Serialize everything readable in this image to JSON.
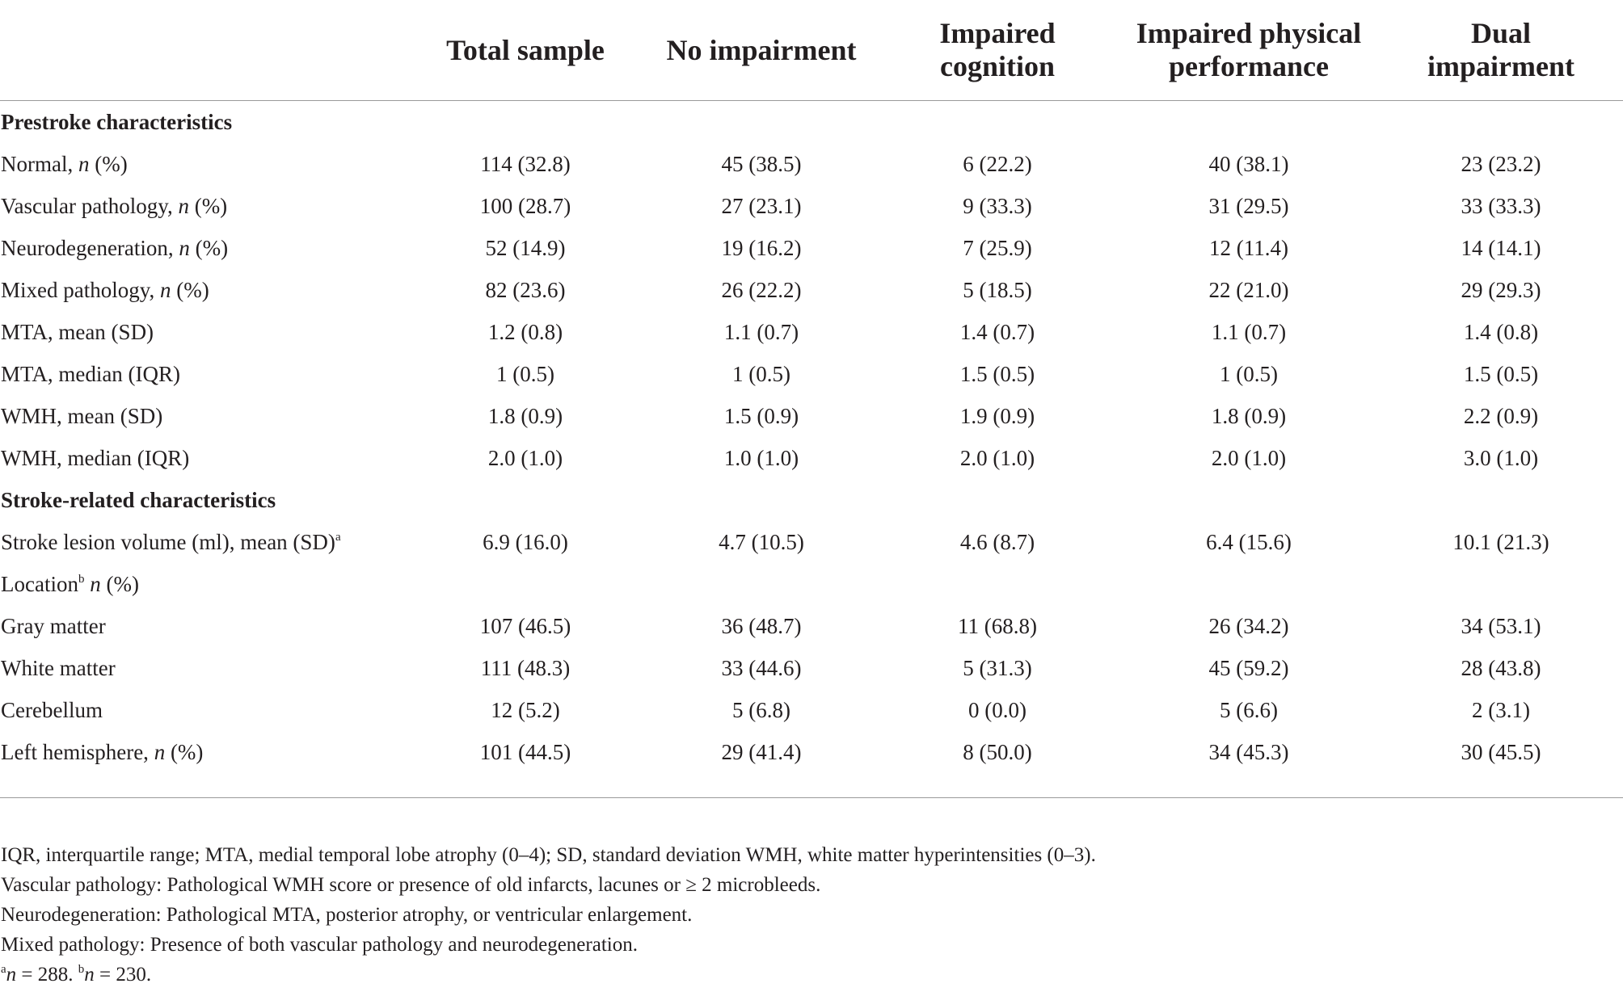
{
  "table": {
    "headers": [
      "",
      "Total sample",
      "No impairment",
      "Impaired cognition",
      "Impaired physical performance",
      "Dual impairment"
    ],
    "rows": [
      {
        "type": "section",
        "label": "Prestroke characteristics",
        "values": [
          "",
          "",
          "",
          "",
          ""
        ]
      },
      {
        "type": "data",
        "label": "Normal, ",
        "label_italic": "n",
        "label_tail": " (%)",
        "label_sup": "",
        "values": [
          "114 (32.8)",
          "45 (38.5)",
          "6 (22.2)",
          "40 (38.1)",
          "23 (23.2)"
        ]
      },
      {
        "type": "data",
        "label": "Vascular pathology, ",
        "label_italic": "n",
        "label_tail": " (%)",
        "label_sup": "",
        "values": [
          "100 (28.7)",
          "27 (23.1)",
          "9 (33.3)",
          "31 (29.5)",
          "33 (33.3)"
        ]
      },
      {
        "type": "data",
        "label": "Neurodegeneration, ",
        "label_italic": "n",
        "label_tail": " (%)",
        "label_sup": "",
        "values": [
          "52 (14.9)",
          "19 (16.2)",
          "7 (25.9)",
          "12 (11.4)",
          "14 (14.1)"
        ]
      },
      {
        "type": "data",
        "label": "Mixed pathology, ",
        "label_italic": "n",
        "label_tail": " (%)",
        "label_sup": "",
        "values": [
          "82 (23.6)",
          "26 (22.2)",
          "5 (18.5)",
          "22 (21.0)",
          "29 (29.3)"
        ]
      },
      {
        "type": "data",
        "label": "MTA, mean (SD)",
        "label_italic": "",
        "label_tail": "",
        "label_sup": "",
        "values": [
          "1.2 (0.8)",
          "1.1 (0.7)",
          "1.4 (0.7)",
          "1.1 (0.7)",
          "1.4 (0.8)"
        ]
      },
      {
        "type": "data",
        "label": "MTA, median (IQR)",
        "label_italic": "",
        "label_tail": "",
        "label_sup": "",
        "values": [
          "1 (0.5)",
          "1 (0.5)",
          "1.5 (0.5)",
          "1 (0.5)",
          "1.5 (0.5)"
        ]
      },
      {
        "type": "data",
        "label": "WMH, mean (SD)",
        "label_italic": "",
        "label_tail": "",
        "label_sup": "",
        "values": [
          "1.8 (0.9)",
          "1.5 (0.9)",
          "1.9 (0.9)",
          "1.8 (0.9)",
          "2.2 (0.9)"
        ]
      },
      {
        "type": "data",
        "label": "WMH, median (IQR)",
        "label_italic": "",
        "label_tail": "",
        "label_sup": "",
        "values": [
          "2.0 (1.0)",
          "1.0 (1.0)",
          "2.0 (1.0)",
          "2.0 (1.0)",
          "3.0 (1.0)"
        ]
      },
      {
        "type": "section",
        "label": "Stroke-related characteristics",
        "values": [
          "",
          "",
          "",
          "",
          ""
        ]
      },
      {
        "type": "data",
        "label": "Stroke lesion volume (ml), mean (SD)",
        "label_italic": "",
        "label_tail": "",
        "label_sup": "a",
        "values": [
          "6.9 (16.0)",
          "4.7 (10.5)",
          "4.6 (8.7)",
          "6.4 (15.6)",
          "10.1 (21.3)"
        ]
      },
      {
        "type": "location",
        "label": "Location",
        "label_sup": "b",
        "label_italic": "n",
        "label_tail": " (%)",
        "values": [
          "",
          "",
          "",
          "",
          ""
        ]
      },
      {
        "type": "data",
        "label": "Gray matter",
        "label_italic": "",
        "label_tail": "",
        "label_sup": "",
        "values": [
          "107 (46.5)",
          "36 (48.7)",
          "11 (68.8)",
          "26 (34.2)",
          "34 (53.1)"
        ]
      },
      {
        "type": "data",
        "label": "White matter",
        "label_italic": "",
        "label_tail": "",
        "label_sup": "",
        "values": [
          "111 (48.3)",
          "33 (44.6)",
          "5 (31.3)",
          "45 (59.2)",
          "28 (43.8)"
        ]
      },
      {
        "type": "data",
        "label": "Cerebellum",
        "label_italic": "",
        "label_tail": "",
        "label_sup": "",
        "values": [
          "12 (5.2)",
          "5 (6.8)",
          "0 (0.0)",
          "5 (6.6)",
          "2 (3.1)"
        ]
      },
      {
        "type": "data",
        "label": "Left hemisphere, ",
        "label_italic": "n",
        "label_tail": " (%)",
        "label_sup": "",
        "values": [
          "101 (44.5)",
          "29 (41.4)",
          "8 (50.0)",
          "34 (45.3)",
          "30 (45.5)"
        ]
      }
    ]
  },
  "footnotes": {
    "abbreviations": "IQR, interquartile range; MTA, medial temporal lobe atrophy (0–4); SD, standard deviation WMH, white matter hyperintensities (0–3).",
    "vascular": "Vascular pathology: Pathological WMH score or presence of old infarcts, lacunes or ≥ 2 microbleeds.",
    "neuro": "Neurodegeneration: Pathological MTA, posterior atrophy, or ventricular enlargement.",
    "mixed": "Mixed pathology: Presence of both vascular pathology and neurodegeneration.",
    "n_a": {
      "sup": "a",
      "italic": "n",
      "text": " = 288. "
    },
    "n_b": {
      "sup": "b",
      "italic": "n",
      "text": " = 230."
    }
  }
}
